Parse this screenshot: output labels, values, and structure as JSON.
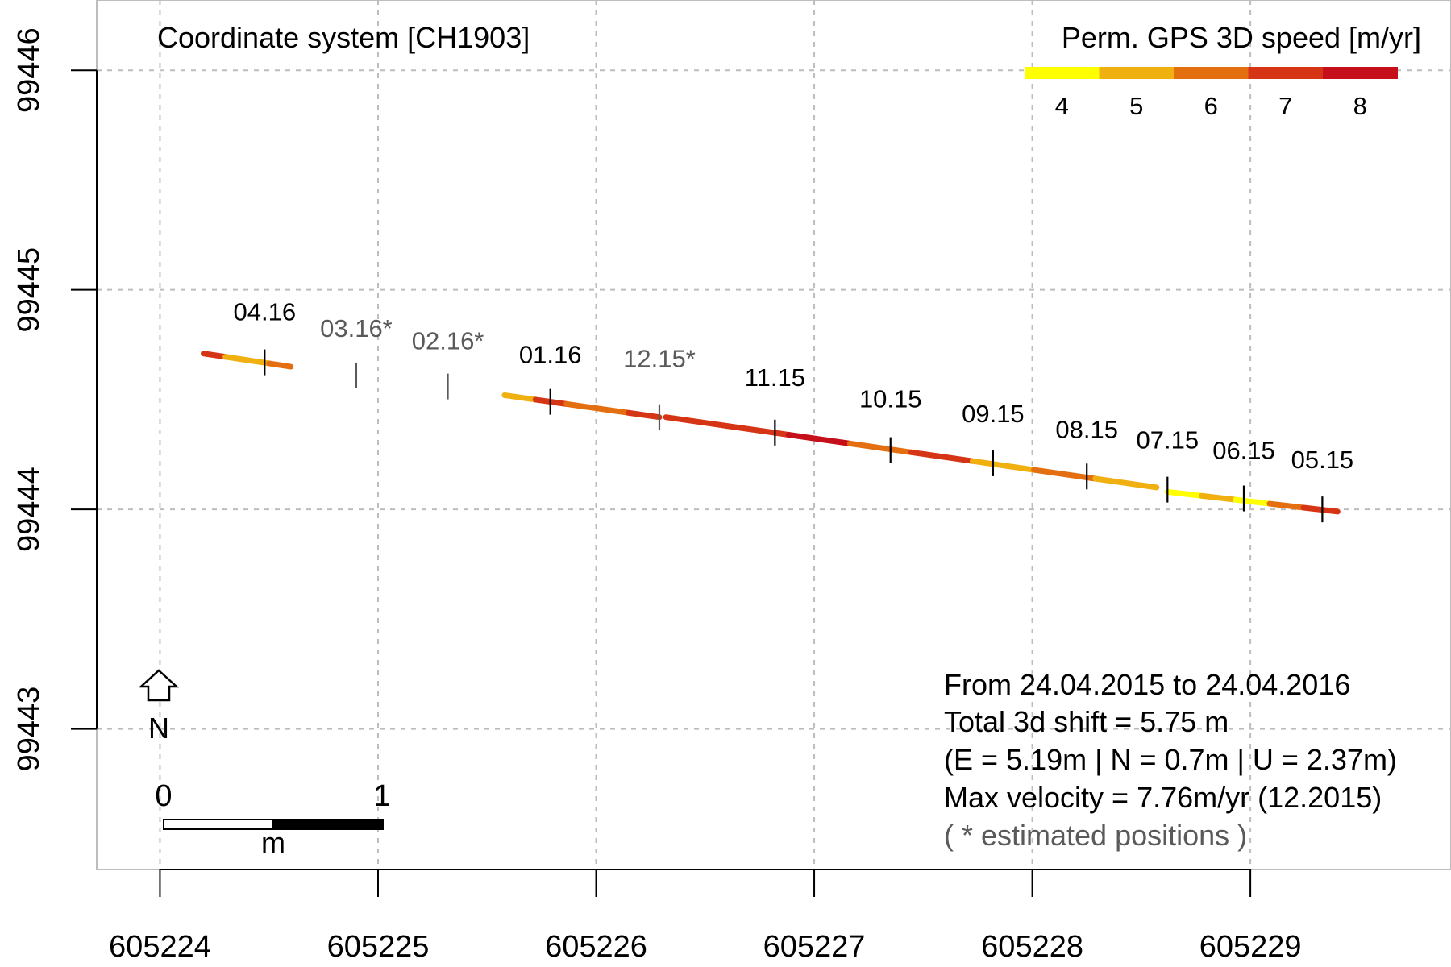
{
  "chart_data": {
    "type": "scatter",
    "title": "",
    "coord_system_label": "Coordinate system [CH1903]",
    "xlabel": "",
    "ylabel": "",
    "xlim": [
      605223.71,
      605229.92
    ],
    "ylim": [
      99442.36,
      99446.32
    ],
    "x_ticks": [
      "605224",
      "605225",
      "605226",
      "605227",
      "605228",
      "605229"
    ],
    "y_ticks": [
      "99443",
      "99444",
      "99445",
      "99446"
    ],
    "grid": true,
    "colorbar": {
      "title": "Perm. GPS 3D speed [m/yr]",
      "placement": "top-right",
      "labels": [
        "4",
        "5",
        "6",
        "7",
        "8"
      ],
      "colors": [
        "#ffff00",
        "#f0b010",
        "#e46f10",
        "#d63515",
        "#c50f1b"
      ]
    },
    "track_segments": [
      {
        "points": [
          [
            605224.2,
            99444.71
          ],
          [
            605224.6,
            99444.65
          ]
        ],
        "colors": [
          "#d63515",
          "#f0b010",
          "#f0b010",
          "#e46f10"
        ]
      },
      {
        "points": [
          [
            605225.58,
            99444.52
          ],
          [
            605226.29,
            99444.42
          ]
        ],
        "colors": [
          "#f0b010",
          "#d63515",
          "#e46f10",
          "#e46f10",
          "#d63515"
        ]
      },
      {
        "points": [
          [
            605226.32,
            99444.42
          ],
          [
            605228.57,
            99444.1
          ]
        ],
        "colors": [
          "#d63515",
          "#d63515",
          "#c50f1b",
          "#e46f10",
          "#d63515",
          "#f0b010",
          "#e46f10",
          "#f0b010"
        ]
      },
      {
        "points": [
          [
            605228.62,
            99444.08
          ],
          [
            605229.4,
            99443.99
          ]
        ],
        "colors": [
          "#ffff00",
          "#f0b010",
          "#ffff00",
          "#e46f10",
          "#d63515"
        ]
      }
    ],
    "month_markers": [
      {
        "label": "04.16",
        "x": 605224.48,
        "y": 99444.67,
        "estimated": false
      },
      {
        "label": "03.16*",
        "x": 605224.9,
        "y": 99444.61,
        "estimated": true
      },
      {
        "label": "02.16*",
        "x": 605225.32,
        "y": 99444.56,
        "estimated": true
      },
      {
        "label": "01.16",
        "x": 605225.79,
        "y": 99444.49,
        "estimated": false
      },
      {
        "label": "12.15*",
        "x": 605226.29,
        "y": 99444.42,
        "estimated": true
      },
      {
        "label": "11.15",
        "x": 605226.82,
        "y": 99444.35,
        "estimated": false
      },
      {
        "label": "10.15",
        "x": 605227.35,
        "y": 99444.27,
        "estimated": false
      },
      {
        "label": "09.15",
        "x": 605227.82,
        "y": 99444.21,
        "estimated": false
      },
      {
        "label": "08.15",
        "x": 605228.25,
        "y": 99444.15,
        "estimated": false
      },
      {
        "label": "07.15",
        "x": 605228.62,
        "y": 99444.09,
        "estimated": false
      },
      {
        "label": "06.15",
        "x": 605228.97,
        "y": 99444.05,
        "estimated": false
      },
      {
        "label": "05.15",
        "x": 605229.33,
        "y": 99444.0,
        "estimated": false
      }
    ],
    "north_arrow_label": "N",
    "scale_bar": {
      "labels": [
        "0",
        "1"
      ],
      "unit": "m",
      "length_m": 1
    },
    "info": {
      "period": "From  24.04.2015  to  24.04.2016",
      "shift": "Total 3d shift = 5.75 m",
      "components": "(E = 5.19m | N = 0.7m | U = 2.37m)",
      "max_velocity": "Max velocity = 7.76m/yr  (12.2015)",
      "note": "( * estimated positions )"
    }
  }
}
